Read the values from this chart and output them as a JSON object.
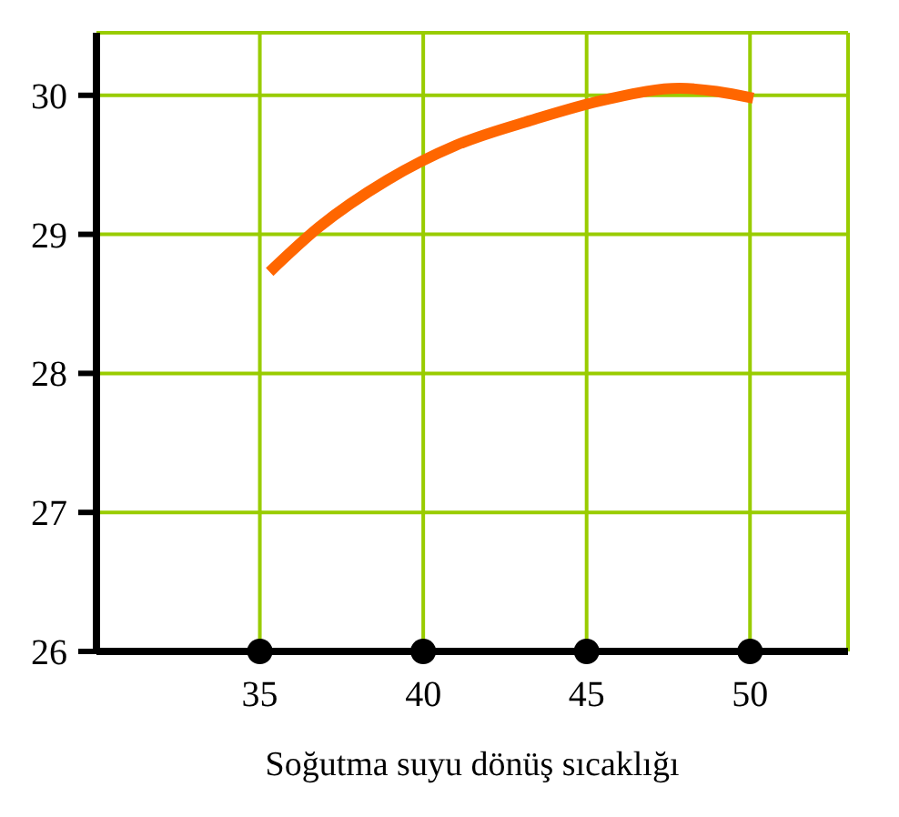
{
  "chart_data": {
    "type": "line",
    "xlabel": "Soğutma suyu dönüş sıcaklığı",
    "x": [
      35.3,
      36.8,
      38.9,
      41.0,
      43.3,
      45.6,
      47.85,
      50.1
    ],
    "series": [
      {
        "color": "#ff6600",
        "values": [
          28.73,
          29.05,
          29.39,
          29.64,
          29.82,
          29.97,
          30.05,
          29.98
        ]
      }
    ],
    "xlim": [
      30,
      53
    ],
    "xticks": [
      35,
      40,
      45,
      50
    ],
    "ylim": [
      26,
      30.45
    ],
    "yticks": [
      26,
      27,
      28,
      29,
      30
    ],
    "grid": true,
    "marker": "none",
    "line_style": "solid",
    "legend": false
  }
}
